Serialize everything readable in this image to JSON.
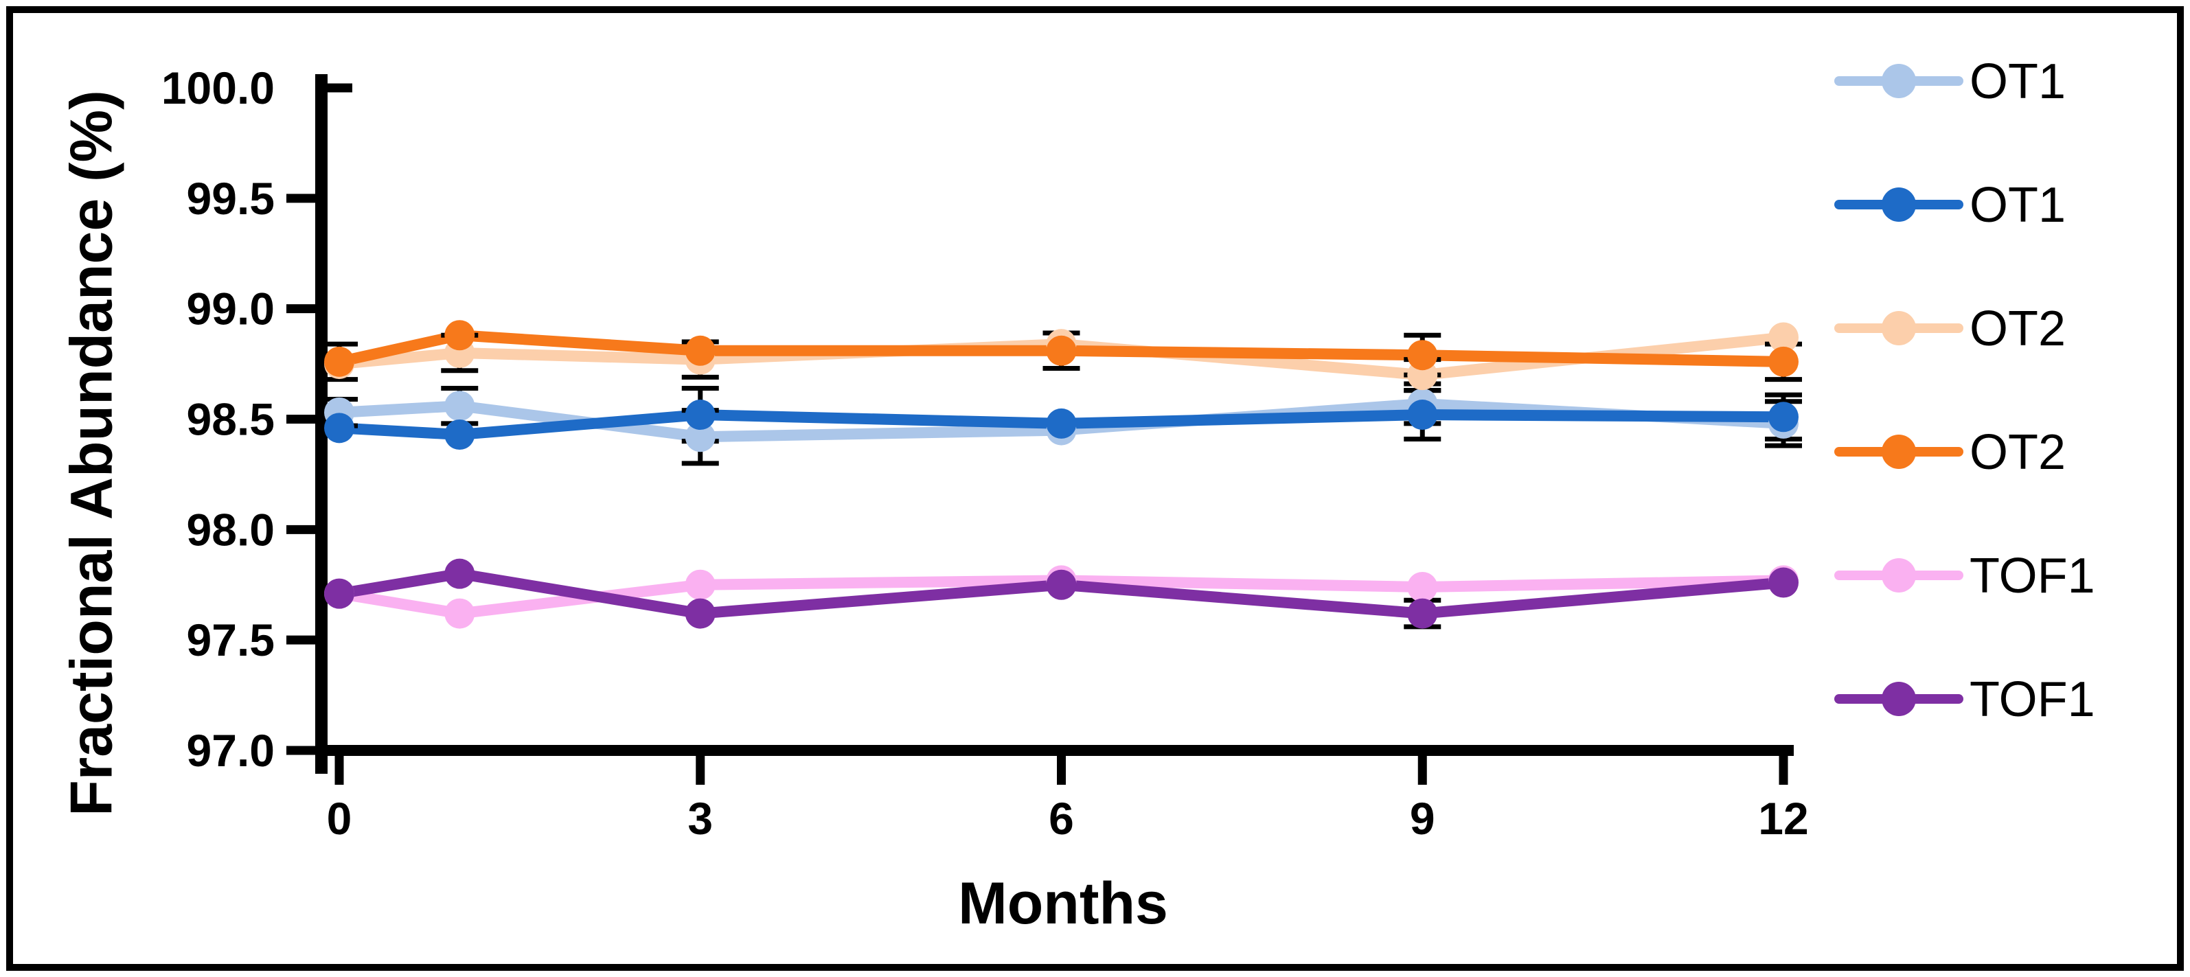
{
  "figure": {
    "background": "#FFFFFF",
    "border_color": "#000000"
  },
  "chart_data": {
    "type": "line",
    "title": "",
    "xlabel": "Months",
    "ylabel": "Fractional Abundance (%)",
    "x": [
      0,
      1,
      3,
      6,
      9,
      12
    ],
    "xlim": [
      0,
      12
    ],
    "ylim": [
      97.0,
      100.0
    ],
    "x_tick_values": [
      0,
      3,
      6,
      9,
      12
    ],
    "x_tick_labels": [
      "0",
      "3",
      "6",
      "9",
      "12"
    ],
    "y_tick_values": [
      100.0,
      99.5,
      99.0,
      98.5,
      98.0,
      97.5,
      97.0
    ],
    "y_tick_labels": [
      "100.0",
      "99.5",
      "99.0",
      "98.5",
      "98.0",
      "97.5",
      "97.0"
    ],
    "grid": false,
    "legend_position": "right",
    "axis_color": "#000000",
    "error_bar_color": "#000000",
    "series": [
      {
        "name": "OT1",
        "color": "#ABC6E9",
        "values": [
          98.53,
          98.56,
          98.42,
          98.45,
          98.57,
          98.48
        ],
        "errors": [
          0.06,
          0.08,
          0.12,
          0,
          0.09,
          0.1
        ]
      },
      {
        "name": "OT1",
        "color": "#1E6BC7",
        "values": [
          98.46,
          98.43,
          98.52,
          98.48,
          98.52,
          98.51
        ],
        "errors": [
          0,
          0,
          0.12,
          0,
          0.11,
          0.1
        ]
      },
      {
        "name": "OT2",
        "color": "#FCCFAB",
        "values": [
          98.75,
          98.8,
          98.77,
          98.84,
          98.7,
          98.87
        ],
        "errors": [
          0,
          0.08,
          0.08,
          0,
          0.07,
          0
        ]
      },
      {
        "name": "OT2",
        "color": "#F7791B",
        "values": [
          98.76,
          98.88,
          98.81,
          98.81,
          98.79,
          98.76
        ],
        "errors": [
          0.08,
          0,
          0,
          0.08,
          0.09,
          0.08
        ]
      },
      {
        "name": "TOF1",
        "color": "#FAB1F1",
        "values": [
          97.71,
          97.62,
          97.75,
          97.77,
          97.74,
          97.77
        ],
        "errors": [
          0,
          0,
          0,
          0,
          0,
          0
        ]
      },
      {
        "name": "TOF1",
        "color": "#7E2FA3",
        "values": [
          97.71,
          97.8,
          97.62,
          97.75,
          97.62,
          97.76
        ],
        "errors": [
          0,
          0,
          0,
          0,
          0.06,
          0
        ]
      }
    ]
  }
}
